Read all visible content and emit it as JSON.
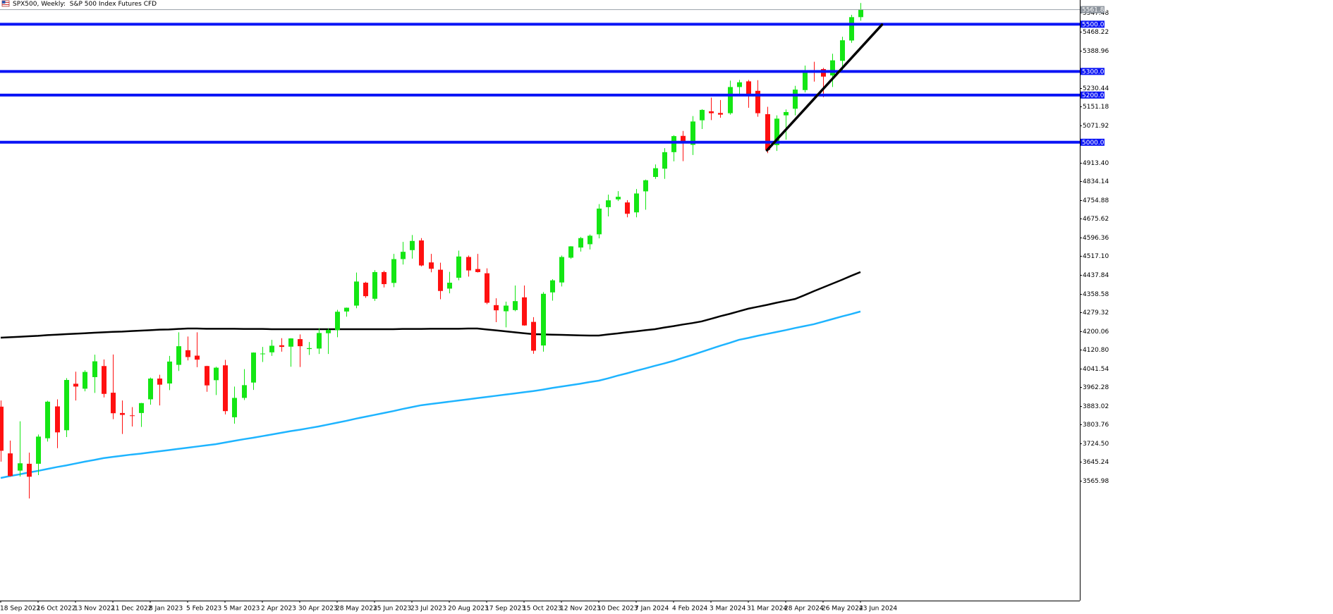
{
  "chart_data": {
    "type": "candlestick",
    "title": "SPX500, Weekly:  S&P 500 Index Futures CFD",
    "categories": [
      "18 Sep 2022",
      null,
      null,
      null,
      "16 Oct 2022",
      null,
      null,
      null,
      "13 Nov 2022",
      null,
      null,
      null,
      "11 Dec 2022",
      null,
      null,
      null,
      "8 Jan 2023",
      null,
      null,
      null,
      "5 Feb 2023",
      null,
      null,
      null,
      "5 Mar 2023",
      null,
      null,
      null,
      "2 Apr 2023",
      null,
      null,
      null,
      "30 Apr 2023",
      null,
      null,
      null,
      "28 May 2023",
      null,
      null,
      null,
      "25 Jun 2023",
      null,
      null,
      null,
      "23 Jul 2023",
      null,
      null,
      null,
      "20 Aug 2023",
      null,
      null,
      null,
      "17 Sep 2023",
      null,
      null,
      null,
      "15 Oct 2023",
      null,
      null,
      null,
      "12 Nov 2023",
      null,
      null,
      null,
      "10 Dec 2023",
      null,
      null,
      null,
      "7 Jan 2024",
      null,
      null,
      null,
      "4 Feb 2024",
      null,
      null,
      null,
      "3 Mar 2024",
      null,
      null,
      null,
      "31 Mar 2024",
      null,
      null,
      null,
      "28 Apr 2024",
      null,
      null,
      null,
      "26 May 2024",
      null,
      null,
      null,
      "23 Jun 2024"
    ],
    "open": [
      3880,
      3682,
      3609,
      3638,
      3638,
      3746,
      3881,
      3780,
      3977,
      3956,
      4005,
      4052,
      3939,
      3853,
      3843,
      3853,
      3911,
      3999,
      3978,
      4057,
      4119,
      4096,
      4052,
      3992,
      4055,
      3835,
      3917,
      3982,
      4102,
      4110,
      4140,
      4134,
      4166,
      4124,
      4126,
      4191,
      4204,
      4283,
      4308,
      4405,
      4337,
      4450,
      4404,
      4505,
      4543,
      4584,
      4491,
      4460,
      4380,
      4426,
      4514,
      4463,
      4445,
      4310,
      4284,
      4289,
      4343,
      4239,
      4139,
      4364,
      4406,
      4511,
      4554,
      4568,
      4610,
      4725,
      4758,
      4745,
      4703,
      4792,
      4853,
      4888,
      4958,
      5027,
      4989,
      5093,
      5131,
      5124,
      5123,
      5234,
      5258,
      5218,
      5119,
      4988,
      5114,
      5142,
      5221,
      5305,
      5310,
      5283,
      5345,
      5431,
      5530
    ],
    "high": [
      3906,
      3736,
      3818,
      3685,
      3762,
      3905,
      3911,
      4001,
      4028,
      4034,
      4100,
      4080,
      4101,
      3906,
      3878,
      3896,
      4003,
      4015,
      4095,
      4195,
      4177,
      4195,
      4053,
      4049,
      4078,
      3965,
      4039,
      4110,
      4133,
      4163,
      4170,
      4170,
      4186,
      4154,
      4212,
      4212,
      4290,
      4300,
      4448,
      4409,
      4458,
      4456,
      4527,
      4578,
      4607,
      4594,
      4527,
      4490,
      4451,
      4541,
      4520,
      4527,
      4466,
      4339,
      4325,
      4393,
      4393,
      4259,
      4365,
      4420,
      4520,
      4560,
      4599,
      4609,
      4738,
      4778,
      4793,
      4755,
      4802,
      4842,
      4906,
      4975,
      5030,
      5048,
      5111,
      5140,
      5189,
      5179,
      5261,
      5264,
      5264,
      5263,
      5150,
      5114,
      5139,
      5239,
      5325,
      5341,
      5315,
      5375,
      5447,
      5540,
      5590
    ],
    "low": [
      3647,
      3584,
      3584,
      3491,
      3590,
      3732,
      3704,
      3751,
      3906,
      3945,
      3938,
      3919,
      3827,
      3764,
      3796,
      3794,
      3888,
      3885,
      3950,
      4031,
      4076,
      4047,
      3943,
      3929,
      3847,
      3808,
      3908,
      3951,
      4069,
      4095,
      4113,
      4049,
      4048,
      4099,
      4103,
      4103,
      4174,
      4261,
      4297,
      4341,
      4328,
      4385,
      4386,
      4482,
      4507,
      4474,
      4449,
      4335,
      4360,
      4415,
      4431,
      4448,
      4314,
      4238,
      4216,
      4284,
      4223,
      4104,
      4113,
      4329,
      4389,
      4506,
      4537,
      4546,
      4593,
      4686,
      4751,
      4682,
      4682,
      4714,
      4845,
      4845,
      4919,
      4920,
      4946,
      5056,
      5094,
      5104,
      5117,
      5204,
      5146,
      5108,
      4954,
      4963,
      5011,
      5114,
      5211,
      5257,
      5191,
      5234,
      5298,
      5421,
      5515
    ],
    "close": [
      3693,
      3586,
      3640,
      3583,
      3753,
      3901,
      3771,
      3993,
      3965,
      4027,
      4072,
      3934,
      3852,
      3845,
      3840,
      3895,
      3999,
      3973,
      4071,
      4136,
      4090,
      4079,
      3970,
      4045,
      3861,
      3917,
      3971,
      4109,
      4105,
      4138,
      4133,
      4169,
      4136,
      4128,
      4192,
      4205,
      4282,
      4299,
      4410,
      4348,
      4450,
      4399,
      4505,
      4536,
      4582,
      4478,
      4464,
      4370,
      4405,
      4516,
      4457,
      4450,
      4320,
      4288,
      4308,
      4327,
      4224,
      4117,
      4358,
      4415,
      4514,
      4559,
      4594,
      4604,
      4719,
      4754,
      4769,
      4697,
      4783,
      4839,
      4890,
      4958,
      5026,
      5005,
      5088,
      5137,
      5123,
      5117,
      5234,
      5254,
      5204,
      5123,
      4967,
      5100,
      5128,
      5223,
      5303,
      5300,
      5278,
      5347,
      5432,
      5530,
      5561.87
    ],
    "up_color": "#14e614",
    "down_color": "#ff1010",
    "moving_averages": [
      {
        "color": "#000000",
        "values": [
          4172,
          4174,
          4176,
          4178,
          4180,
          4183,
          4185,
          4187,
          4189,
          4191,
          4193,
          4195,
          4197,
          4198,
          4200,
          4202,
          4204,
          4206,
          4207,
          4209,
          4211,
          4211,
          4210,
          4210,
          4210,
          4210,
          4209,
          4209,
          4209,
          4208,
          4208,
          4208,
          4208,
          4208,
          4208,
          4208,
          4208,
          4208,
          4208,
          4208,
          4208,
          4208,
          4208,
          4209,
          4209,
          4209,
          4210,
          4210,
          4210,
          4210,
          4211,
          4211,
          4207,
          4203,
          4199,
          4195,
          4191,
          4187,
          4186,
          4185,
          4184,
          4183,
          4182,
          4181,
          4181,
          4186,
          4190,
          4195,
          4199,
          4204,
          4208,
          4215,
          4221,
          4228,
          4234,
          4241,
          4252,
          4263,
          4273,
          4284,
          4295,
          4303,
          4311,
          4320,
          4328,
          4336,
          4352,
          4369,
          4385,
          4401,
          4417,
          4434,
          4450
        ]
      },
      {
        "color": "#1eb4ff",
        "values": [
          3578,
          3586,
          3593,
          3601,
          3608,
          3616,
          3624,
          3631,
          3639,
          3647,
          3654,
          3662,
          3667,
          3672,
          3677,
          3681,
          3686,
          3691,
          3696,
          3701,
          3706,
          3711,
          3716,
          3721,
          3728,
          3735,
          3742,
          3748,
          3755,
          3762,
          3769,
          3776,
          3782,
          3789,
          3796,
          3804,
          3812,
          3820,
          3829,
          3837,
          3845,
          3853,
          3861,
          3870,
          3878,
          3886,
          3891,
          3896,
          3901,
          3906,
          3911,
          3916,
          3921,
          3926,
          3931,
          3936,
          3941,
          3946,
          3952,
          3959,
          3965,
          3971,
          3977,
          3984,
          3990,
          4000,
          4011,
          4021,
          4032,
          4042,
          4053,
          4063,
          4074,
          4087,
          4099,
          4112,
          4125,
          4138,
          4150,
          4163,
          4171,
          4180,
          4188,
          4196,
          4204,
          4213,
          4221,
          4229,
          4240,
          4251,
          4262,
          4272,
          4283
        ]
      }
    ],
    "levels": [
      {
        "value": 5500,
        "label": "5500.00"
      },
      {
        "value": 5300,
        "label": "5300.00"
      },
      {
        "value": 5200,
        "label": "5200.00"
      },
      {
        "value": 5000,
        "label": "5000.00"
      }
    ],
    "level_color": "#0a14f5",
    "trendline": {
      "color": "#000000",
      "x": [
        82,
        94.3
      ],
      "y": [
        4966,
        5498
      ]
    },
    "current_price": 5561.87,
    "ylim": [
      3058.3,
      5602.6
    ],
    "yticks": [
      5547.48,
      5468.22,
      5388.96,
      5230.44,
      5151.18,
      5071.92,
      {
        "value": 4913.4,
        "label": "4913.40"
      },
      4834.14,
      4754.88,
      4675.62,
      4596.36,
      {
        "value": 4517.1,
        "label": "4517.10"
      },
      4437.84,
      4358.58,
      4279.32,
      4200.06,
      {
        "value": 4120.8,
        "label": "4120.80"
      },
      4041.54,
      3962.28,
      3883.02,
      3803.76,
      {
        "value": 3724.5,
        "label": "3724.50"
      },
      3645.24,
      3565.98
    ]
  }
}
